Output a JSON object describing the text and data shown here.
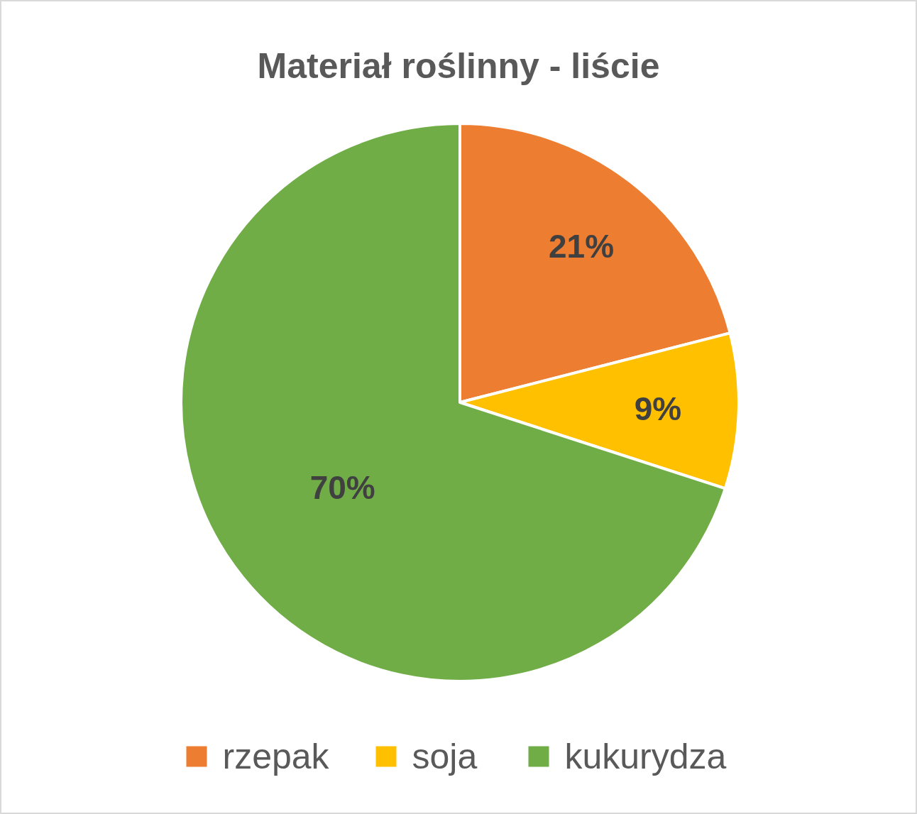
{
  "chart_data": {
    "type": "pie",
    "title": "Materiał roślinny - liście",
    "categories": [
      "rzepak",
      "soja",
      "kukurydza"
    ],
    "values": [
      21,
      9,
      70
    ],
    "colors": [
      "#ed7d31",
      "#ffc000",
      "#70ad47"
    ],
    "value_labels": [
      "21%",
      "9%",
      "70%"
    ],
    "legend": "bottom"
  }
}
